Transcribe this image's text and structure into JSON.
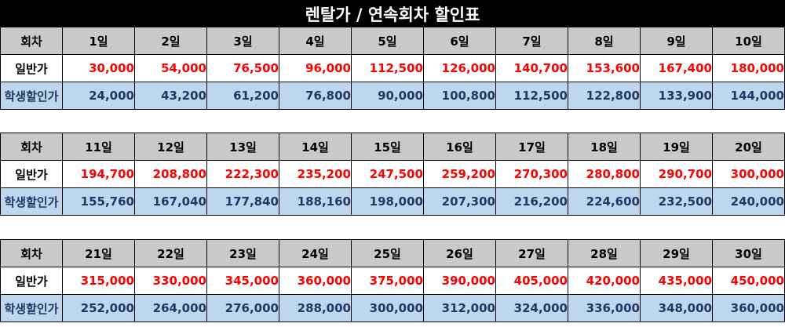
{
  "title": "렌탈가 / 연속회차 할인표",
  "labels": {
    "sessions": "회차",
    "general": "일반가",
    "student": "학생할인가"
  },
  "colors": {
    "header_bg": "#c9c9c9",
    "general_value": "#ff0000",
    "student_bg": "#bdd7ee",
    "student_text": "#1f3864"
  },
  "blocks": [
    {
      "days": [
        "1일",
        "2일",
        "3일",
        "4일",
        "5일",
        "6일",
        "7일",
        "8일",
        "9일",
        "10일"
      ],
      "general": [
        "30,000",
        "54,000",
        "76,500",
        "96,000",
        "112,500",
        "126,000",
        "140,700",
        "153,600",
        "167,400",
        "180,000"
      ],
      "student": [
        "24,000",
        "43,200",
        "61,200",
        "76,800",
        "90,000",
        "100,800",
        "112,500",
        "122,800",
        "133,900",
        "144,000"
      ]
    },
    {
      "days": [
        "11일",
        "12일",
        "13일",
        "14일",
        "15일",
        "16일",
        "17일",
        "18일",
        "19일",
        "20일"
      ],
      "general": [
        "194,700",
        "208,800",
        "222,300",
        "235,200",
        "247,500",
        "259,200",
        "270,300",
        "280,800",
        "290,700",
        "300,000"
      ],
      "student": [
        "155,760",
        "167,040",
        "177,840",
        "188,160",
        "198,000",
        "207,300",
        "216,200",
        "224,600",
        "232,500",
        "240,000"
      ]
    },
    {
      "days": [
        "21일",
        "22일",
        "23일",
        "24일",
        "25일",
        "26일",
        "27일",
        "28일",
        "29일",
        "30일"
      ],
      "general": [
        "315,000",
        "330,000",
        "345,000",
        "360,000",
        "375,000",
        "390,000",
        "405,000",
        "420,000",
        "435,000",
        "450,000"
      ],
      "student": [
        "252,000",
        "264,000",
        "276,000",
        "288,000",
        "300,000",
        "312,000",
        "324,000",
        "336,000",
        "348,000",
        "360,000"
      ]
    }
  ]
}
